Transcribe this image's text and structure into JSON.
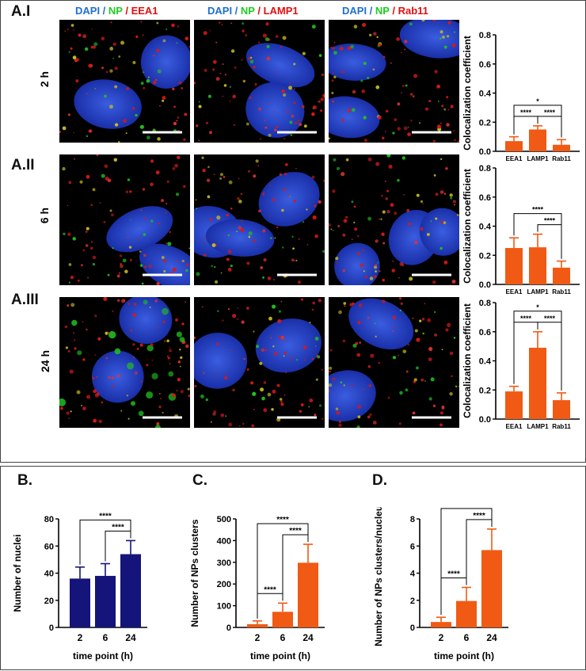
{
  "panels": {
    "a1": "A.I",
    "a2": "A.II",
    "a3": "A.III",
    "b": "B.",
    "c": "C.",
    "d": "D."
  },
  "rows": [
    "2 h",
    "6 h",
    "24 h"
  ],
  "columns": [
    {
      "dapi": "DAPI",
      "sep1": " / ",
      "np": "NP",
      "sep2": " / ",
      "marker": "EEA1"
    },
    {
      "dapi": "DAPI",
      "sep1": " / ",
      "np": "NP",
      "sep2": " / ",
      "marker": "LAMP1"
    },
    {
      "dapi": "DAPI",
      "sep1": " / ",
      "np": "NP",
      "sep2": " / ",
      "marker": "Rab11"
    }
  ],
  "colors": {
    "dapi": "#1f6fd1",
    "np": "#22cc22",
    "marker": "#e01010",
    "orange": "#f05a14",
    "navy": "#14147a"
  },
  "chart_data": [
    {
      "id": "A.I",
      "type": "bar",
      "categories": [
        "EEA1",
        "LAMP1",
        "Rab11"
      ],
      "values": [
        0.07,
        0.15,
        0.045
      ],
      "errors": [
        0.03,
        0.025,
        0.035
      ],
      "ylabel": "Colocalization coefficient",
      "xlabel": "",
      "ylim": [
        0,
        0.8
      ],
      "yticks": [
        "0.0",
        "0.2",
        "0.4",
        "0.6",
        "0.8"
      ],
      "color": "#f05a14",
      "significance": [
        {
          "from": 0,
          "to": 2,
          "label": "*"
        },
        {
          "from": 0,
          "to": 1,
          "label": "****"
        },
        {
          "from": 1,
          "to": 2,
          "label": "****"
        }
      ]
    },
    {
      "id": "A.II",
      "type": "bar",
      "categories": [
        "EEA1",
        "LAMP1",
        "Rab11"
      ],
      "values": [
        0.25,
        0.255,
        0.115
      ],
      "errors": [
        0.07,
        0.09,
        0.045
      ],
      "ylabel": "Colocalization coefficient",
      "xlabel": "",
      "ylim": [
        0,
        0.8
      ],
      "yticks": [
        "0.0",
        "0.2",
        "0.4",
        "0.6",
        "0.8"
      ],
      "color": "#f05a14",
      "significance": [
        {
          "from": 0,
          "to": 2,
          "label": "****"
        },
        {
          "from": 1,
          "to": 2,
          "label": "****"
        }
      ]
    },
    {
      "id": "A.III",
      "type": "bar",
      "categories": [
        "EEA1",
        "LAMP1",
        "Rab11"
      ],
      "values": [
        0.19,
        0.49,
        0.13
      ],
      "errors": [
        0.035,
        0.11,
        0.05
      ],
      "ylabel": "Colocalization coefficient",
      "xlabel": "",
      "ylim": [
        0,
        0.8
      ],
      "yticks": [
        "0.0",
        "0.2",
        "0.4",
        "0.6",
        "0.8"
      ],
      "color": "#f05a14",
      "significance": [
        {
          "from": 0,
          "to": 2,
          "label": "*"
        },
        {
          "from": 0,
          "to": 1,
          "label": "****"
        },
        {
          "from": 1,
          "to": 2,
          "label": "****"
        }
      ]
    },
    {
      "id": "B",
      "type": "bar",
      "categories": [
        "2",
        "6",
        "24"
      ],
      "values": [
        36,
        38,
        54
      ],
      "errors": [
        8.5,
        9,
        10
      ],
      "ylabel": "Number of nuclei",
      "xlabel": "time point (h)",
      "ylim": [
        0,
        80
      ],
      "yticks": [
        "0",
        "20",
        "40",
        "60",
        "80"
      ],
      "color": "#14147a",
      "significance": [
        {
          "from": 0,
          "to": 2,
          "label": "****"
        },
        {
          "from": 1,
          "to": 2,
          "label": "****"
        }
      ]
    },
    {
      "id": "C",
      "type": "bar",
      "categories": [
        "2",
        "6",
        "24"
      ],
      "values": [
        15,
        72,
        298
      ],
      "errors": [
        15,
        40,
        85
      ],
      "ylabel": "Number of NPs clusters",
      "xlabel": "time point (h)",
      "ylim": [
        0,
        500
      ],
      "yticks": [
        "0",
        "100",
        "200",
        "300",
        "400",
        "500"
      ],
      "color": "#f05a14",
      "significance": [
        {
          "from": 0,
          "to": 2,
          "label": "****"
        },
        {
          "from": 1,
          "to": 2,
          "label": "****"
        },
        {
          "from": 0,
          "to": 1,
          "label": "****"
        }
      ]
    },
    {
      "id": "D",
      "type": "bar",
      "categories": [
        "2",
        "6",
        "24"
      ],
      "values": [
        0.4,
        1.95,
        5.7
      ],
      "errors": [
        0.35,
        1.0,
        1.55
      ],
      "ylabel": "Number of NPs clusters/nucleus",
      "xlabel": "time point (h)",
      "ylim": [
        0,
        8
      ],
      "yticks": [
        "0",
        "2",
        "4",
        "6",
        "8"
      ],
      "color": "#f05a14",
      "significance": [
        {
          "from": 0,
          "to": 2,
          "label": "****"
        },
        {
          "from": 1,
          "to": 2,
          "label": "****"
        },
        {
          "from": 0,
          "to": 1,
          "label": "****"
        }
      ]
    }
  ]
}
